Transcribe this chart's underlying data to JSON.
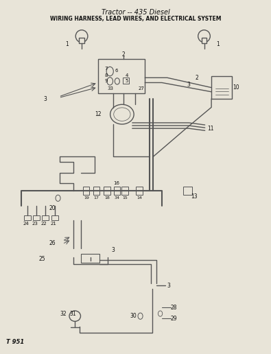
{
  "title": "Tractor -- 435 Diesel",
  "subtitle": "WIRING HARNESS, LEAD WIRES, AND ELECTRICAL SYSTEM",
  "bg_color": "#e8e4d8",
  "line_color": "#555555",
  "text_color": "#111111",
  "fig_id": "T 951"
}
